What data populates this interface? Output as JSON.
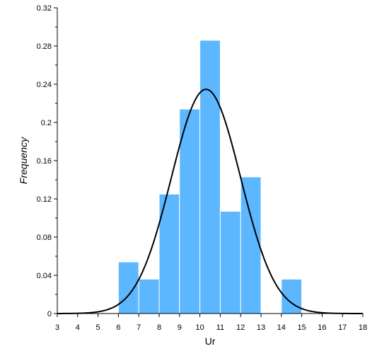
{
  "chart_data": {
    "type": "bar",
    "subtype": "histogram-with-normal-fit",
    "xlabel": "Ur",
    "ylabel": "Frequency",
    "xlim": [
      3,
      18
    ],
    "ylim": [
      0,
      0.32
    ],
    "x_ticks": [
      3,
      4,
      5,
      6,
      7,
      8,
      9,
      10,
      11,
      12,
      13,
      14,
      15,
      16,
      17,
      18
    ],
    "y_ticks": [
      0,
      0.04,
      0.08,
      0.12,
      0.16,
      0.2,
      0.24,
      0.28,
      0.32
    ],
    "y_tick_labels": [
      "0",
      "0.04",
      "0.08",
      "0.12",
      "0.16",
      "0.2",
      "0.24",
      "0.28",
      "0.32"
    ],
    "bins": [
      {
        "x0": 6,
        "x1": 7,
        "value": 0.054
      },
      {
        "x0": 7,
        "x1": 8,
        "value": 0.036
      },
      {
        "x0": 8,
        "x1": 9,
        "value": 0.125
      },
      {
        "x0": 9,
        "x1": 10,
        "value": 0.214
      },
      {
        "x0": 10,
        "x1": 11,
        "value": 0.286
      },
      {
        "x0": 11,
        "x1": 12,
        "value": 0.107
      },
      {
        "x0": 12,
        "x1": 13,
        "value": 0.143
      },
      {
        "x0": 14,
        "x1": 15,
        "value": 0.036
      }
    ],
    "fit_curve": {
      "type": "normal",
      "mean": 10.3,
      "std": 1.7,
      "scale": 1.0,
      "color": "#000000"
    },
    "bar_color": "#5cb7ff",
    "bar_edge_color": "#ffffff",
    "grid": false,
    "legend": "none"
  }
}
